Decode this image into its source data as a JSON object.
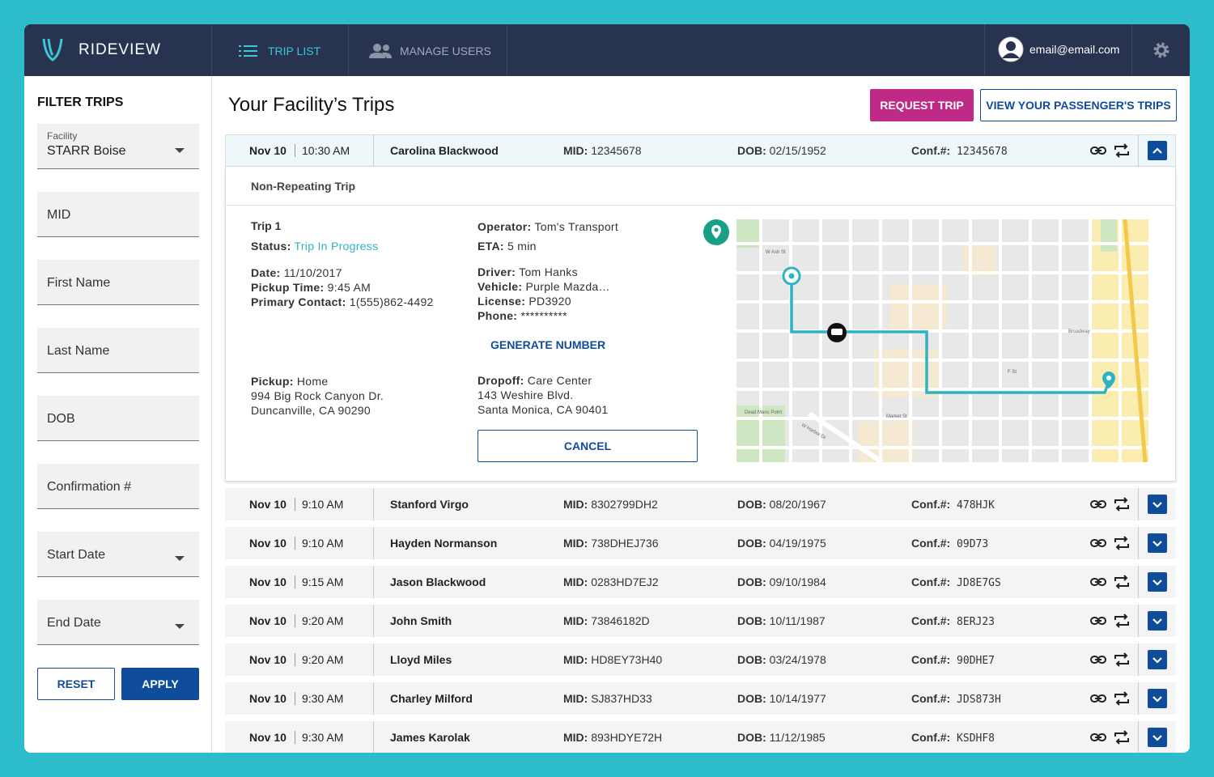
{
  "nav": {
    "brand": "RIDEVIEW",
    "tabs": [
      "TRIP LIST",
      "MANAGE USERS"
    ],
    "email": "email@email.com"
  },
  "filters": {
    "title": "FILTER TRIPS",
    "facility_label": "Facility",
    "facility_value": "STARR Boise",
    "fields": [
      "MID",
      "First Name",
      "Last Name",
      "DOB",
      "Confirmation #",
      "Start Date",
      "End Date"
    ],
    "reset": "RESET",
    "apply": "APPLY"
  },
  "header": {
    "title": "Your Facility’s Trips",
    "request": "REQUEST TRIP",
    "view": "VIEW YOUR PASSENGER'S TRIPS"
  },
  "labels": {
    "mid": "MID:",
    "dob": "DOB:",
    "conf": "Conf.#:"
  },
  "trips": [
    {
      "date": "Nov 10",
      "time": "10:30 AM",
      "name": "Carolina Blackwood",
      "mid": "12345678",
      "dob": "02/15/1952",
      "conf": "12345678"
    },
    {
      "date": "Nov 10",
      "time": "9:10 AM",
      "name": "Stanford Virgo",
      "mid": "8302799DH2",
      "dob": "08/20/1967",
      "conf": "478HJK"
    },
    {
      "date": "Nov 10",
      "time": "9:10 AM",
      "name": "Hayden Normanson",
      "mid": "738DHEJ736",
      "dob": "04/19/1975",
      "conf": "09D73"
    },
    {
      "date": "Nov 10",
      "time": "9:15 AM",
      "name": "Jason Blackwood",
      "mid": "0283HD7EJ2",
      "dob": "09/10/1984",
      "conf": "JD8E7GS"
    },
    {
      "date": "Nov 10",
      "time": "9:20 AM",
      "name": "John Smith",
      "mid": "73846182D",
      "dob": "10/11/1987",
      "conf": "8ERJ23"
    },
    {
      "date": "Nov 10",
      "time": "9:20 AM",
      "name": "Lloyd Miles",
      "mid": "HD8EY73H40",
      "dob": "03/24/1978",
      "conf": "90DHE7"
    },
    {
      "date": "Nov 10",
      "time": "9:30 AM",
      "name": "Charley Milford",
      "mid": "SJ837HD33",
      "dob": "10/14/1977",
      "conf": "JDS873H"
    },
    {
      "date": "Nov 10",
      "time": "9:30 AM",
      "name": "James Karolak",
      "mid": "893HDYE72H",
      "dob": "11/12/1985",
      "conf": "KSDHF8"
    }
  ],
  "detail": {
    "repeat": "Non-Repeating Trip",
    "trip": "Trip 1",
    "status": {
      "label": "Status:",
      "value": "Trip In Progress"
    },
    "left": [
      {
        "label": "Date:",
        "value": "11/10/2017"
      },
      {
        "label": "Pickup Time:",
        "value": "9:45 AM"
      },
      {
        "label": "Primary Contact:",
        "value": "1(555)862-4492"
      }
    ],
    "top_mid": [
      {
        "label": "Operator:",
        "value": "Tom's Transport"
      },
      {
        "label": "ETA:",
        "value": "5 min"
      }
    ],
    "mid": [
      {
        "label": "Driver:",
        "value": "Tom Hanks"
      },
      {
        "label": "Vehicle:",
        "value": "Purple Mazda…"
      },
      {
        "label": "License:",
        "value": "PD3920"
      },
      {
        "label": "Phone:",
        "value": "**********"
      }
    ],
    "generate": "GENERATE NUMBER",
    "pickup": {
      "label": "Pickup:",
      "value": "Home",
      "lines": [
        "994 Big Rock Canyon Dr.",
        "Duncanville, CA 90290"
      ]
    },
    "dropoff": {
      "label": "Dropoff:",
      "value": "Care Center",
      "lines": [
        "143 Weshire Blvd.",
        "Santa Monica, CA 90401"
      ]
    },
    "cancel": "CANCEL",
    "map_labels": [
      "W Ash St",
      "Broadway",
      "F St",
      "Market St",
      "Dead Mans Point",
      "W Harbor Dr"
    ]
  }
}
